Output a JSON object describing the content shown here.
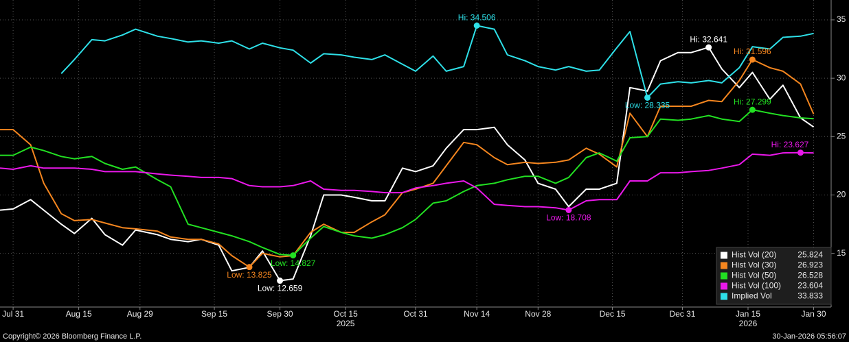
{
  "chart_data": {
    "type": "line",
    "x": [
      "2025-07-28",
      "2025-07-31",
      "2025-08-04",
      "2025-08-07",
      "2025-08-11",
      "2025-08-14",
      "2025-08-18",
      "2025-08-21",
      "2025-08-25",
      "2025-08-28",
      "2025-09-02",
      "2025-09-05",
      "2025-09-09",
      "2025-09-12",
      "2025-09-16",
      "2025-09-19",
      "2025-09-23",
      "2025-09-26",
      "2025-09-30",
      "2025-10-03",
      "2025-10-07",
      "2025-10-10",
      "2025-10-14",
      "2025-10-17",
      "2025-10-21",
      "2025-10-24",
      "2025-10-28",
      "2025-10-31",
      "2025-11-04",
      "2025-11-07",
      "2025-11-11",
      "2025-11-14",
      "2025-11-18",
      "2025-11-21",
      "2025-11-25",
      "2025-11-28",
      "2025-12-02",
      "2025-12-05",
      "2025-12-09",
      "2025-12-12",
      "2025-12-16",
      "2025-12-19",
      "2025-12-23",
      "2025-12-26",
      "2025-12-30",
      "2026-01-02",
      "2026-01-06",
      "2026-01-09",
      "2026-01-13",
      "2026-01-16",
      "2026-01-20",
      "2026-01-23",
      "2026-01-27",
      "2026-01-30"
    ],
    "series": [
      {
        "name": "Hist Vol (20)",
        "color": "#ffffff",
        "values": [
          18.7,
          18.8,
          19.6,
          18.7,
          17.5,
          16.7,
          18.0,
          16.6,
          15.7,
          17.0,
          16.6,
          16.2,
          16.0,
          16.2,
          15.7,
          13.5,
          13.8,
          15.2,
          12.659,
          12.8,
          16.5,
          20.0,
          20.0,
          19.8,
          19.5,
          19.5,
          22.3,
          22.0,
          22.5,
          24.0,
          25.6,
          25.6,
          25.8,
          24.3,
          23.0,
          21.0,
          20.5,
          19.0,
          20.5,
          20.5,
          21.0,
          29.2,
          28.9,
          31.5,
          32.2,
          32.2,
          32.641,
          30.8,
          29.2,
          30.5,
          28.2,
          29.4,
          26.6,
          25.824
        ],
        "markers": [
          {
            "x": "2025-09-30",
            "label": "Low: 12.659"
          },
          {
            "x": "2026-01-06",
            "label": "Hi: 32.641"
          }
        ]
      },
      {
        "name": "Hist Vol (30)",
        "color": "#f5861f",
        "values": [
          25.6,
          25.6,
          24.3,
          21.0,
          18.4,
          17.8,
          17.9,
          17.6,
          17.2,
          17.1,
          16.9,
          16.4,
          16.2,
          16.2,
          15.8,
          14.8,
          13.825,
          15.0,
          14.7,
          14.8,
          16.8,
          17.5,
          16.8,
          16.8,
          17.7,
          18.3,
          20.2,
          20.5,
          21.0,
          22.5,
          24.5,
          24.3,
          23.2,
          22.6,
          22.8,
          22.7,
          22.8,
          23.0,
          24.0,
          23.5,
          22.4,
          27.0,
          25.0,
          27.6,
          27.6,
          27.6,
          28.1,
          28.0,
          29.8,
          31.596,
          30.9,
          30.6,
          29.5,
          26.923
        ],
        "markers": [
          {
            "x": "2025-09-23",
            "label": "Low: 13.825"
          },
          {
            "x": "2026-01-16",
            "label": "Hi: 31.596"
          }
        ]
      },
      {
        "name": "Hist Vol (50)",
        "color": "#22e022",
        "values": [
          23.4,
          23.4,
          24.1,
          23.8,
          23.3,
          23.1,
          23.3,
          22.7,
          22.2,
          22.4,
          21.3,
          20.7,
          17.5,
          17.2,
          16.8,
          16.5,
          16.0,
          15.5,
          14.9,
          14.827,
          16.3,
          17.3,
          16.8,
          16.5,
          16.3,
          16.6,
          17.2,
          17.9,
          19.3,
          19.5,
          20.3,
          20.8,
          21.0,
          21.3,
          21.6,
          21.6,
          21.0,
          21.5,
          23.2,
          23.6,
          22.9,
          24.9,
          25.0,
          26.5,
          26.4,
          26.5,
          26.8,
          26.5,
          26.3,
          27.299,
          27.0,
          26.8,
          26.6,
          26.528
        ],
        "markers": [
          {
            "x": "2025-10-03",
            "label": "Low: 14.827"
          },
          {
            "x": "2026-01-16",
            "label": "Hi: 27.299"
          }
        ]
      },
      {
        "name": "Hist Vol (100)",
        "color": "#ea18ea",
        "values": [
          22.3,
          22.2,
          22.5,
          22.3,
          22.3,
          22.3,
          22.2,
          22.0,
          22.0,
          22.0,
          21.8,
          21.7,
          21.6,
          21.5,
          21.5,
          21.4,
          20.8,
          20.7,
          20.7,
          20.8,
          21.2,
          20.5,
          20.4,
          20.4,
          20.3,
          20.2,
          20.2,
          20.6,
          20.8,
          21.0,
          21.2,
          20.6,
          19.2,
          19.1,
          19.0,
          19.0,
          18.9,
          18.708,
          19.5,
          19.6,
          19.6,
          21.2,
          21.2,
          21.9,
          21.9,
          22.0,
          22.1,
          22.3,
          22.6,
          23.5,
          23.4,
          23.6,
          23.627,
          23.604
        ],
        "markers": [
          {
            "x": "2025-12-05",
            "label": "Low: 18.708"
          },
          {
            "x": "2026-01-27",
            "label": "Hi: 23.627"
          }
        ]
      },
      {
        "name": "Implied Vol",
        "color": "#2ee0e8",
        "values": [
          null,
          null,
          null,
          null,
          30.4,
          31.6,
          33.3,
          33.2,
          33.7,
          34.2,
          33.6,
          33.4,
          33.1,
          33.2,
          33.0,
          33.2,
          32.5,
          33.0,
          32.6,
          32.4,
          31.3,
          32.1,
          32.0,
          31.8,
          31.6,
          32.0,
          31.2,
          30.6,
          31.9,
          30.6,
          31.0,
          34.506,
          34.2,
          32.0,
          31.5,
          31.0,
          30.7,
          31.0,
          30.6,
          30.7,
          32.6,
          34.0,
          28.335,
          29.5,
          29.7,
          29.6,
          29.8,
          29.6,
          30.9,
          32.7,
          32.5,
          33.5,
          33.6,
          33.833
        ],
        "markers": [
          {
            "x": "2025-11-14",
            "label": "Hi: 34.506"
          },
          {
            "x": "2025-12-23",
            "label": "Low: 28.335"
          }
        ]
      }
    ],
    "xlim": [
      "2025-07-28",
      "2026-02-03"
    ],
    "xticks": [
      {
        "value": "2025-07-31",
        "label": "Jul 31"
      },
      {
        "value": "2025-08-15",
        "label": "Aug 15"
      },
      {
        "value": "2025-08-29",
        "label": "Aug 29"
      },
      {
        "value": "2025-09-15",
        "label": "Sep 15"
      },
      {
        "value": "2025-09-30",
        "label": "Sep 30"
      },
      {
        "value": "2025-10-15",
        "label": "Oct 15"
      },
      {
        "value": "2025-10-31",
        "label": "Oct 31"
      },
      {
        "value": "2025-11-14",
        "label": "Nov 14"
      },
      {
        "value": "2025-11-28",
        "label": "Nov 28"
      },
      {
        "value": "2025-12-15",
        "label": "Dec 15"
      },
      {
        "value": "2025-12-31",
        "label": "Dec 31"
      },
      {
        "value": "2026-01-15",
        "label": "Jan 15"
      },
      {
        "value": "2026-01-30",
        "label": "Jan 30"
      }
    ],
    "year_labels": [
      {
        "value": "2025-10-15",
        "label": "2025"
      },
      {
        "value": "2026-01-15",
        "label": "2026"
      }
    ],
    "ylim": [
      10.4,
      36.7
    ],
    "yticks": [
      15,
      20,
      25,
      30,
      35
    ],
    "grid": true,
    "legend": "lower right",
    "copyright": "Copyright© 2026 Bloomberg Finance L.P.",
    "timestamp": "30-Jan-2026 05:56:07"
  }
}
